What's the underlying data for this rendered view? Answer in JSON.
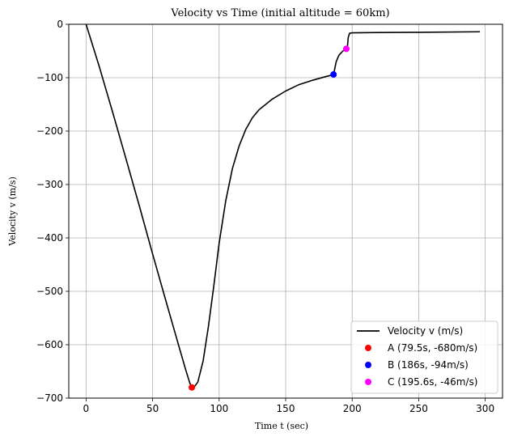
{
  "chart_data": {
    "type": "line",
    "title": "Velocity vs Time (initial altitude = 60km)",
    "xlabel": "Time t (sec)",
    "ylabel": "Velocity v (m/s)",
    "xlim": [
      -13,
      313
    ],
    "ylim": [
      -700,
      0
    ],
    "x_ticks": [
      0,
      50,
      100,
      150,
      200,
      250,
      300
    ],
    "y_ticks": [
      0,
      -100,
      -200,
      -300,
      -400,
      -500,
      -600,
      -700
    ],
    "x_tick_labels": [
      "0",
      "50",
      "100",
      "150",
      "200",
      "250",
      "300"
    ],
    "y_tick_labels": [
      "0",
      "−100",
      "−200",
      "−300",
      "−400",
      "−500",
      "−600",
      "−700"
    ],
    "grid": true,
    "legend_position": "bottom-right",
    "series": [
      {
        "name": "Velocity v (m/s)",
        "kind": "line",
        "color": "#000000",
        "x": [
          0,
          10,
          20,
          30,
          40,
          50,
          60,
          70,
          75,
          78,
          79.5,
          81,
          84,
          88,
          92,
          96,
          100,
          105,
          110,
          115,
          120,
          125,
          130,
          140,
          150,
          160,
          170,
          180,
          185,
          186,
          187,
          188,
          190,
          193,
          195.6,
          196.5,
          197,
          198,
          200,
          220,
          250,
          296
        ],
        "y": [
          0,
          -80,
          -165,
          -252,
          -340,
          -430,
          -518,
          -605,
          -648,
          -672,
          -680,
          -680,
          -670,
          -630,
          -565,
          -490,
          -410,
          -330,
          -270,
          -228,
          -197,
          -175,
          -160,
          -140,
          -125,
          -113,
          -105,
          -98,
          -95,
          -94,
          -82,
          -70,
          -58,
          -50,
          -46,
          -40,
          -25,
          -17,
          -16,
          -15.5,
          -15,
          -14
        ]
      },
      {
        "name": "A (79.5s, -680m/s)",
        "kind": "scatter",
        "color": "#ff0000",
        "x": [
          79.5
        ],
        "y": [
          -680
        ]
      },
      {
        "name": "B (186s, -94m/s)",
        "kind": "scatter",
        "color": "#0000ff",
        "x": [
          186
        ],
        "y": [
          -94
        ]
      },
      {
        "name": "C (195.6s, -46m/s)",
        "kind": "scatter",
        "color": "#ff00ff",
        "x": [
          195.6
        ],
        "y": [
          -46
        ]
      }
    ]
  }
}
